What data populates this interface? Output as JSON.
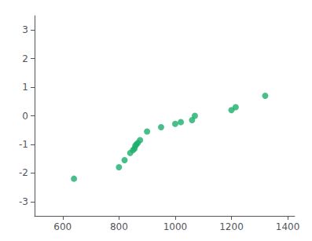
{
  "chart_data": {
    "type": "scatter",
    "x": [
      640,
      800,
      820,
      840,
      850,
      855,
      858,
      862,
      867,
      875,
      900,
      950,
      1000,
      1020,
      1060,
      1070,
      1200,
      1215,
      1320
    ],
    "values": [
      -2.2,
      -1.8,
      -1.55,
      -1.3,
      -1.2,
      -1.15,
      -1.05,
      -1.0,
      -0.95,
      -0.85,
      -0.55,
      -0.4,
      -0.28,
      -0.22,
      -0.15,
      0.0,
      0.2,
      0.3,
      0.7
    ],
    "color": "#1aaf6c",
    "xlim": [
      500,
      1425
    ],
    "ylim": [
      -3.5,
      3.5
    ],
    "xticks": [
      600,
      800,
      1000,
      1200,
      1400
    ],
    "yticks": [
      -3,
      -2,
      -1,
      0,
      1,
      2,
      3
    ],
    "grid": false
  }
}
